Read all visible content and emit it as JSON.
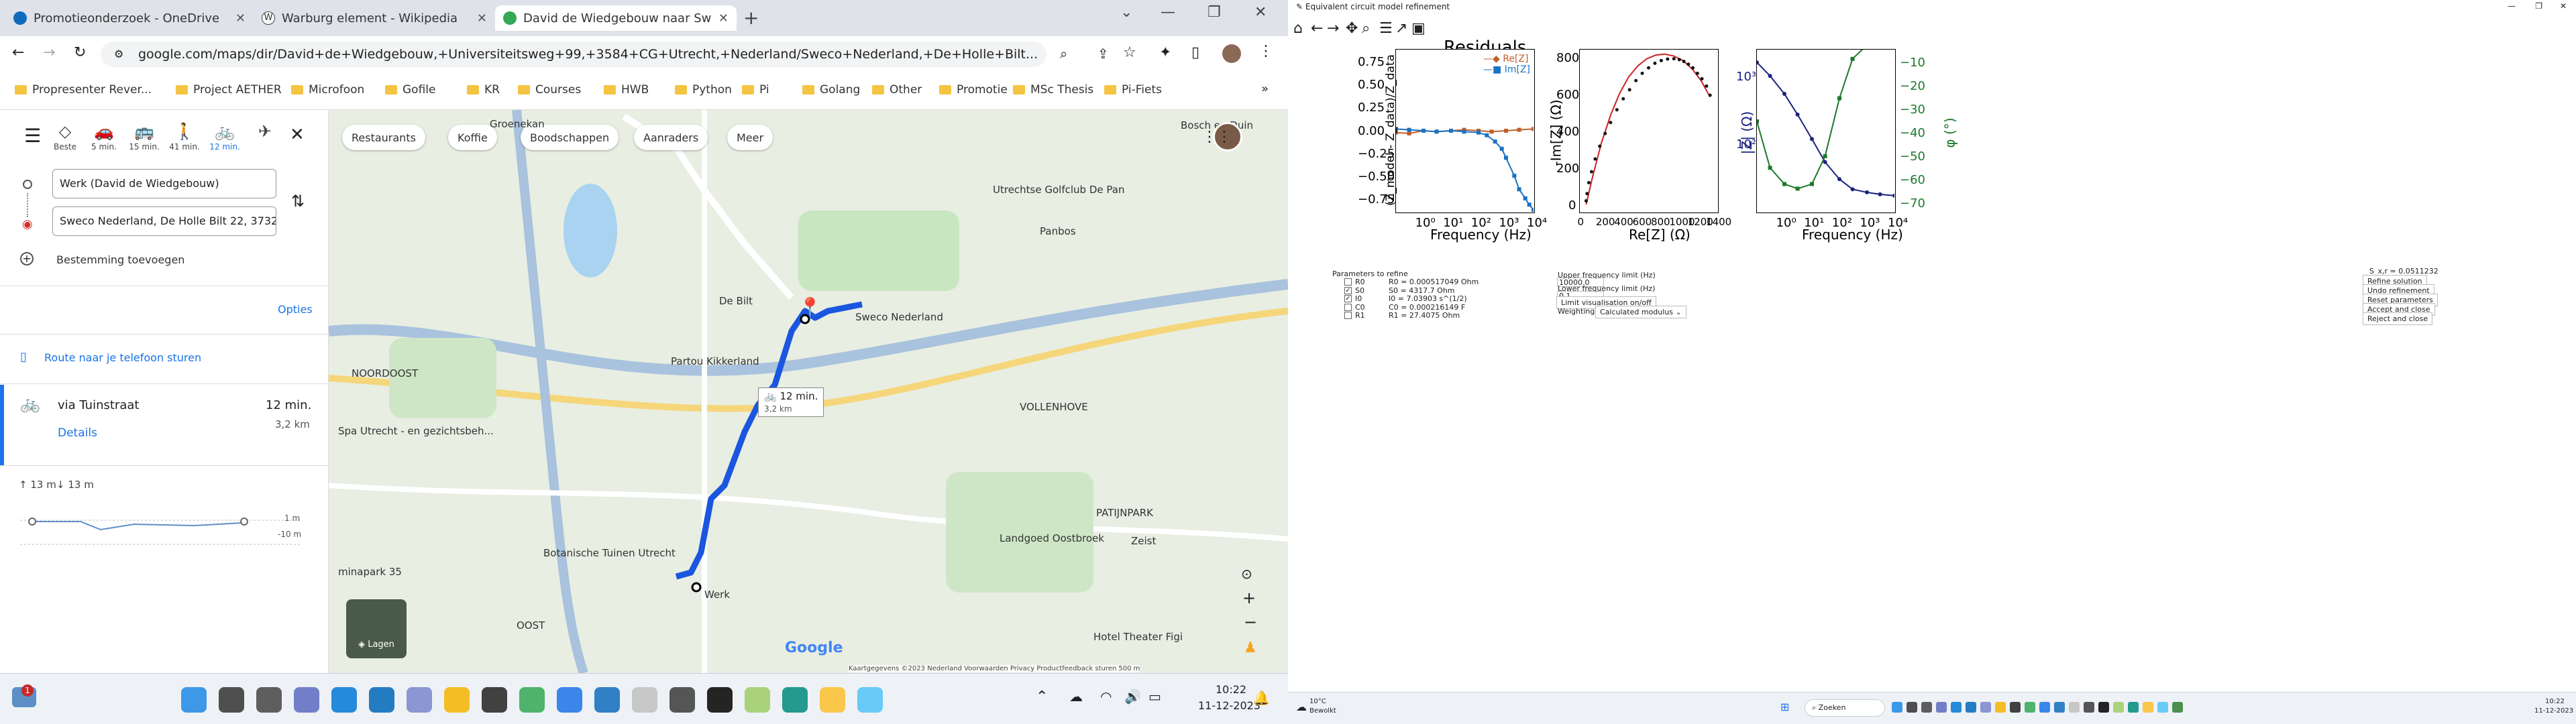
{
  "browser": {
    "tabs": [
      {
        "title": "Promotieonderzoek - OneDrive",
        "color": "#0f6cbd"
      },
      {
        "title": "Warburg element - Wikipedia",
        "color": "#333333"
      },
      {
        "title": "David de Wiedgebouw naar Swe",
        "color": "#34a853"
      }
    ],
    "url": "google.com/maps/dir/David+de+Wiedgebouw,+Universiteitsweg+99,+3584+CG+Utrecht,+Nederland/Sweco+Nederland,+De+Holle+Bilt...",
    "bookmarks": [
      "Propresenter Rever...",
      "Project AETHER",
      "Microfoon",
      "Gofile",
      "KR",
      "Courses",
      "HWB",
      "Python",
      "Pi",
      "Golang",
      "Other",
      "Promotie",
      "MSc Thesis",
      "Pi-Fiets"
    ]
  },
  "maps": {
    "modes": [
      {
        "label": "Beste",
        "icon": "◇"
      },
      {
        "label": "5 min.",
        "icon": "🚗"
      },
      {
        "label": "15 min.",
        "icon": "🚌"
      },
      {
        "label": "41 min.",
        "icon": "🚶"
      },
      {
        "label": "12 min.",
        "icon": "🚲"
      },
      {
        "label": "",
        "icon": "✈"
      }
    ],
    "origin": "Werk (David de Wiedgebouw)",
    "destination": "Sweco Nederland, De Holle Bilt 22, 3732",
    "add_destination": "Bestemming toevoegen",
    "options": "Opties",
    "send_to_phone": "Route naar je telefoon sturen",
    "route_via": "via Tuinstraat",
    "route_time": "12 min.",
    "route_dist": "3,2 km",
    "details": "Details",
    "elev_up": "↑ 13 m",
    "elev_down": "↓ 13 m",
    "elev_max": "1 m",
    "elev_min": "-10 m",
    "chips": [
      "Restaurants",
      "Koffie",
      "Boodschappen",
      "Aanraders",
      "Meer"
    ],
    "map_labels": [
      {
        "t": "Groenekan"
      },
      {
        "t": "Bosch en Duin"
      },
      {
        "t": "Utrechtse Golfclub De Pan"
      },
      {
        "t": "Panbos"
      },
      {
        "t": "De Bilt"
      },
      {
        "t": "Sweco Nederland"
      },
      {
        "t": "Partou Kikkerland"
      },
      {
        "t": "NOORDOOST"
      },
      {
        "t": "Spa Utrecht - en gezichtsbeh..."
      },
      {
        "t": "VOLLENHOVE"
      },
      {
        "t": "Landgoed Oostbroek"
      },
      {
        "t": "PATIJNPARK"
      },
      {
        "t": "Zeist"
      },
      {
        "t": "Hotel Theater Figi"
      },
      {
        "t": "Werk"
      },
      {
        "t": "Botanische Tuinen Utrecht"
      },
      {
        "t": "OOST"
      },
      {
        "t": "minapark 35"
      }
    ],
    "route_badge_time": "12 min.",
    "route_badge_dist": "3,2 km",
    "layers": "Lagen",
    "attribution": "Kaartgegevens ©2023   Nederland   Voorwaarden   Privacy   Productfeedback sturen   500 m",
    "logo": "Google"
  },
  "taskbar_left": {
    "time": "10:22",
    "date": "11-12-2023",
    "badge": "1"
  },
  "app": {
    "title": "Equivalent circuit model refinement",
    "plot1": {
      "title": "Residuals",
      "xlabel": "Frequency (Hz)",
      "ylabel": "(Z_model - Z_data)/Z_data",
      "legend": [
        "Re[Z]",
        "Im[Z]"
      ],
      "yticks": [
        "0.75",
        "0.50",
        "0.25",
        "0.00",
        "−0.25",
        "−0.50",
        "−0.75"
      ],
      "xticks": [
        "10⁰",
        "10¹",
        "10²",
        "10³",
        "10⁴"
      ]
    },
    "plot2": {
      "xlabel": "Re[Z] (Ω)",
      "ylabel": "-Im[Z] (Ω)",
      "yticks": [
        "800",
        "600",
        "400",
        "200",
        "0"
      ],
      "xticks": [
        "0",
        "200",
        "400",
        "600",
        "800",
        "1000",
        "1200",
        "1400"
      ]
    },
    "plot3": {
      "xlabel": "Frequency (Hz)",
      "ylabel": "|Z| (Ω)",
      "ylabel2": "φ (°)",
      "yticks": [
        "10³",
        "10²"
      ],
      "yticks2": [
        "−10",
        "−20",
        "−30",
        "−40",
        "−50",
        "−60",
        "−70"
      ],
      "xticks": [
        "10⁰",
        "10¹",
        "10²",
        "10³",
        "10⁴"
      ]
    },
    "params_title": "Parameters to refine",
    "params": [
      {
        "name": "R0",
        "checked": false,
        "value": "R0 = 0.000517049 Ohm"
      },
      {
        "name": "S0",
        "checked": true,
        "value": "S0 = 4317.7 Ohm"
      },
      {
        "name": "I0",
        "checked": true,
        "value": "I0 = 7.03903 s^(1/2)"
      },
      {
        "name": "C0",
        "checked": false,
        "value": "C0 = 0.000216149 F"
      },
      {
        "name": "R1",
        "checked": false,
        "value": "R1 = 27.4075 Ohm"
      }
    ],
    "upper_label": "Upper frequency limit (Hz)",
    "upper_value": "10000.0",
    "lower_label": "Lower frequency limit (Hz)",
    "lower_value": "0.1",
    "limit_btn": "Limit visualisation on/off",
    "weighting_label": "Weighting scheme:",
    "weighting_value": "Calculated modulus",
    "sxr": "S_x,r = 0.0511232",
    "buttons": [
      "Refine solution",
      "Undo refinement",
      "Reset parameters",
      "Accept and close",
      "Reject and close"
    ]
  },
  "taskbar_right": {
    "weather_temp": "10°C",
    "weather_desc": "Bewolkt",
    "search": "Zoeken",
    "time": "10:22",
    "date": "11-12-2023"
  },
  "chart_data": [
    {
      "type": "line",
      "title": "Residuals",
      "xlabel": "Frequency (Hz)",
      "ylabel": "(Z_model - Z_data)/Z_data",
      "xscale": "log",
      "xlim": [
        0.1,
        10000
      ],
      "ylim": [
        -0.9,
        0.9
      ],
      "legend": "top-right",
      "series": [
        {
          "name": "Re[Z]",
          "color": "#c0602a",
          "x": [
            0.1,
            0.3,
            1,
            3,
            10,
            30,
            100,
            300,
            1000,
            3000,
            10000
          ],
          "y": [
            -0.02,
            -0.03,
            0.0,
            -0.01,
            0.0,
            0.01,
            0.0,
            -0.01,
            0.0,
            0.01,
            0.02
          ]
        },
        {
          "name": "Im[Z]",
          "color": "#1a72c4",
          "x": [
            0.1,
            0.3,
            1,
            3,
            10,
            30,
            100,
            200,
            400,
            700,
            1000,
            2000,
            3000,
            5000,
            7000,
            10000
          ],
          "y": [
            0.02,
            0.01,
            0.0,
            -0.01,
            0.0,
            -0.01,
            -0.02,
            -0.05,
            -0.12,
            -0.2,
            -0.3,
            -0.5,
            -0.65,
            -0.75,
            -0.82,
            -0.88
          ]
        }
      ]
    },
    {
      "type": "scatter",
      "xlabel": "Re[Z] (Ω)",
      "ylabel": "-Im[Z] (Ω)",
      "xlim": [
        -40,
        1480
      ],
      "ylim": [
        -40,
        850
      ],
      "series": [
        {
          "name": "",
          "color": "#111111",
          "x": [
            30,
            40,
            60,
            90,
            130,
            180,
            240,
            300,
            370,
            440,
            510,
            580,
            650,
            720,
            790,
            860,
            930,
            1000,
            1060,
            1110,
            1160,
            1210,
            1260,
            1310,
            1360,
            1400
          ],
          "y": [
            20,
            60,
            120,
            180,
            250,
            320,
            390,
            450,
            520,
            580,
            630,
            680,
            720,
            750,
            775,
            790,
            798,
            800,
            795,
            785,
            770,
            750,
            720,
            690,
            650,
            600
          ]
        },
        {
          "name": "",
          "color": "#cc2222",
          "x": [
            30,
            100,
            200,
            300,
            400,
            500,
            600,
            700,
            800,
            900,
            1000,
            1100,
            1200,
            1300,
            1400
          ],
          "y": [
            0,
            150,
            340,
            490,
            610,
            700,
            760,
            800,
            820,
            825,
            815,
            790,
            745,
            680,
            590
          ]
        }
      ]
    },
    {
      "type": "scatter",
      "xlabel": "Frequency (Hz)",
      "ylabel": "|Z| (Ω)",
      "ylabel2": "φ (°)",
      "xscale": "log",
      "xlim": [
        0.1,
        10000
      ],
      "series": [
        {
          "name": "|Z|",
          "color": "#1a237e",
          "x": [
            0.1,
            0.3,
            1,
            3,
            10,
            30,
            100,
            300,
            1000,
            3000,
            10000
          ],
          "y": [
            2200,
            1500,
            900,
            500,
            250,
            130,
            80,
            60,
            55,
            52,
            50
          ]
        },
        {
          "name": "φ",
          "color": "#1b7a2b",
          "x": [
            0.1,
            0.3,
            1,
            3,
            10,
            30,
            100,
            300,
            1000,
            3000,
            10000
          ],
          "y": [
            -35,
            -55,
            -62,
            -64,
            -62,
            -50,
            -25,
            -8,
            -2,
            -1,
            -1
          ]
        }
      ]
    }
  ]
}
